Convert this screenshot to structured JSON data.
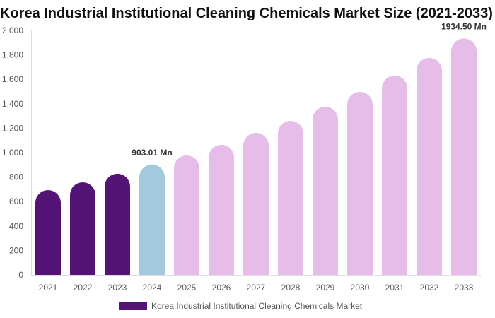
{
  "chart_data": {
    "type": "bar",
    "title": "Korea Industrial Institutional Cleaning Chemicals Market Size (2021-2033)",
    "categories": [
      "2021",
      "2022",
      "2023",
      "2024",
      "2025",
      "2026",
      "2027",
      "2028",
      "2029",
      "2030",
      "2031",
      "2032",
      "2033"
    ],
    "series": [
      {
        "name": "Korea Industrial Institutional Cleaning Chemicals Market",
        "values": [
          694,
          757,
          827,
          903.01,
          977,
          1064,
          1162,
          1260,
          1376,
          1497,
          1630,
          1775,
          1934.5
        ]
      }
    ],
    "data_labels": [
      {
        "index": 3,
        "text": "903.01 Mn"
      },
      {
        "index": 12,
        "text": "1934.50 Mn"
      }
    ],
    "yticks": [
      "0",
      "200",
      "400",
      "600",
      "800",
      "1,000",
      "1,200",
      "1,400",
      "1,600",
      "1,800",
      "2,000"
    ],
    "ylim": [
      0,
      2000
    ],
    "grid": false,
    "legend": "bottom",
    "colors": {
      "historical": "#541475",
      "current": "#a3c9dd",
      "forecast": "#e6bce8"
    }
  }
}
